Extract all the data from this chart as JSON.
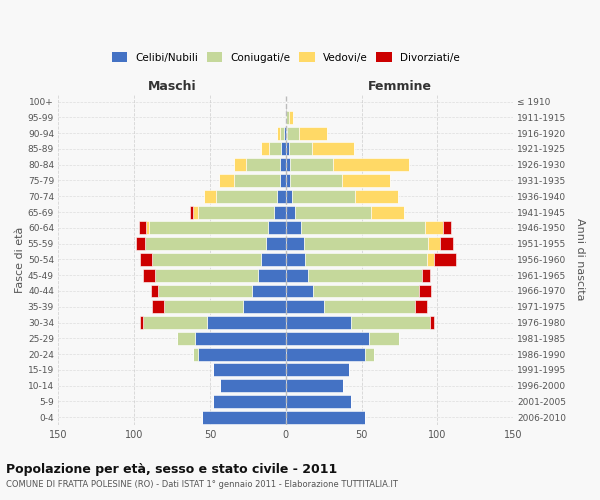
{
  "age_groups": [
    "0-4",
    "5-9",
    "10-14",
    "15-19",
    "20-24",
    "25-29",
    "30-34",
    "35-39",
    "40-44",
    "45-49",
    "50-54",
    "55-59",
    "60-64",
    "65-69",
    "70-74",
    "75-79",
    "80-84",
    "85-89",
    "90-94",
    "95-99",
    "100+"
  ],
  "birth_years": [
    "2006-2010",
    "2001-2005",
    "1996-2000",
    "1991-1995",
    "1986-1990",
    "1981-1985",
    "1976-1980",
    "1971-1975",
    "1966-1970",
    "1961-1965",
    "1956-1960",
    "1951-1955",
    "1946-1950",
    "1941-1945",
    "1936-1940",
    "1931-1935",
    "1926-1930",
    "1921-1925",
    "1916-1920",
    "1911-1915",
    "≤ 1910"
  ],
  "male": {
    "celibi": [
      55,
      48,
      43,
      48,
      58,
      60,
      52,
      28,
      22,
      18,
      16,
      13,
      12,
      8,
      6,
      4,
      4,
      3,
      1,
      0,
      0
    ],
    "coniugati": [
      0,
      0,
      0,
      0,
      3,
      12,
      42,
      52,
      62,
      68,
      72,
      80,
      78,
      50,
      40,
      30,
      22,
      8,
      3,
      0,
      0
    ],
    "vedovi": [
      0,
      0,
      0,
      0,
      0,
      0,
      0,
      0,
      0,
      0,
      0,
      0,
      2,
      3,
      8,
      10,
      8,
      5,
      2,
      0,
      0
    ],
    "divorziati": [
      0,
      0,
      0,
      0,
      0,
      0,
      2,
      8,
      5,
      8,
      8,
      6,
      5,
      2,
      0,
      0,
      0,
      0,
      0,
      0,
      0
    ]
  },
  "female": {
    "nubili": [
      52,
      43,
      38,
      42,
      52,
      55,
      43,
      25,
      18,
      15,
      13,
      12,
      10,
      6,
      4,
      3,
      3,
      2,
      1,
      0,
      0
    ],
    "coniugate": [
      0,
      0,
      0,
      0,
      6,
      20,
      52,
      60,
      70,
      75,
      80,
      82,
      82,
      50,
      42,
      34,
      28,
      15,
      8,
      2,
      0
    ],
    "vedove": [
      0,
      0,
      0,
      0,
      0,
      0,
      0,
      0,
      0,
      0,
      5,
      8,
      12,
      22,
      28,
      32,
      50,
      28,
      18,
      3,
      0
    ],
    "divorziate": [
      0,
      0,
      0,
      0,
      0,
      0,
      3,
      8,
      8,
      5,
      14,
      8,
      5,
      0,
      0,
      0,
      0,
      0,
      0,
      0,
      0
    ]
  },
  "colors": {
    "celibi": "#4472c4",
    "coniugati": "#c5d89b",
    "vedovi": "#ffd966",
    "divorziati": "#cc0000"
  },
  "title": "Popolazione per età, sesso e stato civile - 2011",
  "subtitle": "COMUNE DI FRATTA POLESINE (RO) - Dati ISTAT 1° gennaio 2011 - Elaborazione TUTTITALIA.IT",
  "xlabel_left": "Maschi",
  "xlabel_right": "Femmine",
  "ylabel_left": "Fasce di età",
  "ylabel_right": "Anni di nascita",
  "xlim": 150,
  "bg_color": "#f8f8f8",
  "grid_color": "#cccccc"
}
